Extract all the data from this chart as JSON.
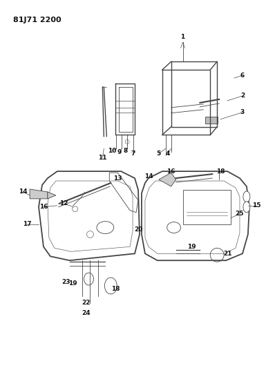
{
  "title_code": "81J71 2200",
  "background_color": "#ffffff",
  "text_color": "#111111",
  "line_color": "#444444",
  "figsize": [
    3.98,
    5.33
  ],
  "dpi": 100
}
